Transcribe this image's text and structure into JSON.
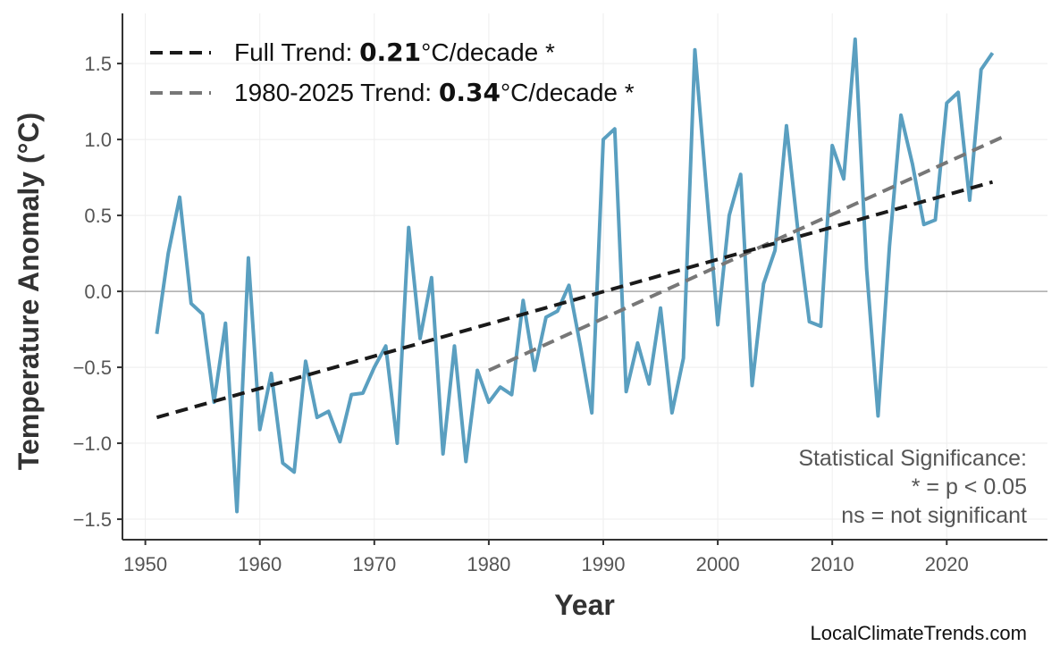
{
  "chart_data": {
    "type": "line",
    "xlabel": "Year",
    "ylabel": "Temperature Anomaly (°C)",
    "xlim": [
      1948,
      2028.8
    ],
    "ylim": [
      -1.635,
      1.83
    ],
    "xticks": [
      1950,
      1960,
      1970,
      1980,
      1990,
      2000,
      2010,
      2020
    ],
    "yticks": [
      -1.5,
      -1.0,
      -0.5,
      0.0,
      0.5,
      1.0,
      1.5
    ],
    "ytick_labels": [
      "−1.5",
      "−1.0",
      "−0.5",
      "0.0",
      "0.5",
      "1.0",
      "1.5"
    ],
    "grid": true,
    "legend_placement": "top-left",
    "colors": {
      "series": "#5a9fc0",
      "full_trend": "#1a1a1a",
      "recent_trend": "#777777",
      "zero_line": "#aaaaaa"
    },
    "series": [
      {
        "x": [
          1951,
          1952,
          1953,
          1954,
          1955,
          1956,
          1957,
          1958,
          1959,
          1960,
          1961,
          1962,
          1963,
          1964,
          1965,
          1966,
          1967,
          1968,
          1969,
          1970,
          1971,
          1972,
          1973,
          1974,
          1975,
          1976,
          1977,
          1978,
          1979,
          1980,
          1981,
          1982,
          1983,
          1984,
          1985,
          1986,
          1987,
          1988,
          1989,
          1990,
          1991,
          1992,
          1993,
          1994,
          1995,
          1996,
          1997,
          1998,
          1999,
          2000,
          2001,
          2002,
          2003,
          2004,
          2005,
          2006,
          2007,
          2008,
          2009,
          2010,
          2011,
          2012,
          2013,
          2014,
          2015,
          2016,
          2017,
          2018,
          2019,
          2020,
          2021,
          2022,
          2023,
          2024
        ],
        "values": [
          -0.28,
          0.25,
          0.62,
          -0.08,
          -0.15,
          -0.73,
          -0.21,
          -1.45,
          0.22,
          -0.91,
          -0.54,
          -1.13,
          -1.19,
          -0.46,
          -0.83,
          -0.79,
          -0.99,
          -0.68,
          -0.67,
          -0.5,
          -0.36,
          -1.0,
          0.42,
          -0.31,
          0.09,
          -1.07,
          -0.36,
          -1.12,
          -0.52,
          -0.73,
          -0.63,
          -0.68,
          -0.06,
          -0.52,
          -0.17,
          -0.13,
          0.04,
          -0.36,
          -0.8,
          1.0,
          1.07,
          -0.66,
          -0.34,
          -0.61,
          -0.11,
          -0.8,
          -0.44,
          1.59,
          0.68,
          -0.22,
          0.5,
          0.77,
          -0.62,
          0.05,
          0.27,
          1.09,
          0.4,
          -0.2,
          -0.23,
          0.96,
          0.74,
          1.66,
          0.15,
          -0.82,
          0.3,
          1.16,
          0.84,
          0.44,
          0.47,
          1.24,
          1.31,
          0.6,
          1.46,
          1.57
        ]
      }
    ],
    "trends": [
      {
        "label_prefix": "Full Trend: ",
        "value": "0.21",
        "label_suffix": "°C/decade *",
        "x": [
          1951,
          2024
        ],
        "y": [
          -0.83,
          0.72
        ]
      },
      {
        "label_prefix": "1980-2025 Trend: ",
        "value": "0.34",
        "label_suffix": "°C/decade *",
        "x": [
          1980,
          2025
        ],
        "y": [
          -0.52,
          1.02
        ]
      }
    ],
    "annotations": [
      "Statistical Significance:",
      "* = p < 0.05",
      "ns = not significant"
    ],
    "credit": "LocalClimateTrends.com"
  }
}
